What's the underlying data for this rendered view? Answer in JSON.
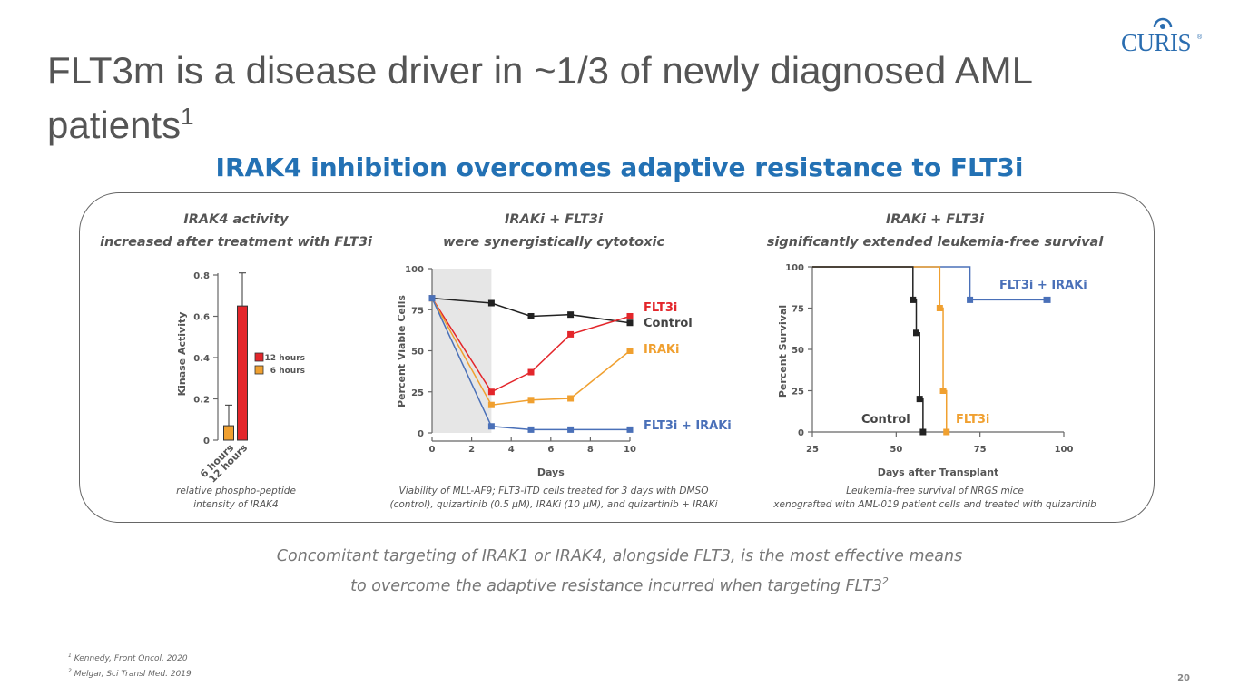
{
  "slide": {
    "title_main": "FLT3m is a disease driver in ~1/3 of newly diagnosed AML patients",
    "title_sup": "1",
    "subtitle": "IRAK4 inhibition overcomes adaptive resistance to FLT3i",
    "logo_text": "CURIS",
    "logo_mark": "®",
    "conclusion_line1": "Concomitant targeting of IRAK1 or IRAK4, alongside FLT3, is the most effective means",
    "conclusion_line2": "to overcome the adaptive resistance incurred when targeting FLT3",
    "conclusion_sup": "2",
    "ref1_num": "1",
    "ref1_text": " Kennedy, Front Oncol. 2020",
    "ref2_num": "2",
    "ref2_text": " Melgar, Sci Transl Med. 2019",
    "page_number": "20"
  },
  "panels": [
    {
      "head1": "IRAK4 activity",
      "head2": "increased after treatment with FLT3i",
      "cap1": "relative phospho-peptide",
      "cap2": "intensity of IRAK4"
    },
    {
      "head1": "IRAKi + FLT3i",
      "head2": "were synergistically cytotoxic",
      "cap1": "Viability of MLL-AF9; FLT3-ITD cells treated for 3 days with DMSO",
      "cap2": "(control), quizartinib (0.5 µM), IRAKi (10 µM), and quizartinib + IRAKi"
    },
    {
      "head1": "IRAKi + FLT3i",
      "head2": "significantly extended leukemia-free survival",
      "cap1": "Leukemia-free survival of NRGS mice",
      "cap2": "xenografted with AML-019 patient cells and treated with quizartinib"
    }
  ],
  "colors": {
    "accent": "#2371b4",
    "red": "#e3262b",
    "orange": "#f0a030",
    "blue": "#4a70b8",
    "black": "#222222"
  },
  "chart_data": [
    {
      "type": "bar",
      "ylabel": "Kinase Activity",
      "ylim": [
        0,
        0.8
      ],
      "yticks": [
        0,
        0.2,
        0.4,
        0.6,
        0.8
      ],
      "ytick_labels": [
        "0",
        "0.2",
        "0.4",
        "0.6",
        "0.8"
      ],
      "categories": [
        "6 hours",
        "12 hours"
      ],
      "values": [
        0.07,
        0.65
      ],
      "error_upper": [
        0.17,
        0.81
      ],
      "legend": [
        "12 hours",
        "6 hours"
      ],
      "legend_position": "right"
    },
    {
      "type": "line",
      "xlabel": "Days",
      "ylabel": "Percent Viable Cells",
      "xlim": [
        0,
        10
      ],
      "ylim": [
        0,
        100
      ],
      "xticks": [
        0,
        2,
        4,
        6,
        8,
        10
      ],
      "xtick_labels": [
        "0",
        "2",
        "4",
        "6",
        "8",
        "10"
      ],
      "yticks": [
        0,
        25,
        50,
        75,
        100
      ],
      "ytick_labels": [
        "0",
        "25",
        "50",
        "75",
        "100"
      ],
      "shaded_region": [
        0,
        3
      ],
      "series": [
        {
          "name": "Control",
          "x": [
            0,
            3,
            5,
            7,
            10
          ],
          "y": [
            82,
            79,
            71,
            72,
            67
          ]
        },
        {
          "name": "FLT3i",
          "x": [
            0,
            3,
            5,
            7,
            10
          ],
          "y": [
            82,
            25,
            37,
            60,
            71
          ]
        },
        {
          "name": "IRAKi",
          "x": [
            0,
            3,
            5,
            7,
            10
          ],
          "y": [
            82,
            17,
            20,
            21,
            50
          ]
        },
        {
          "name": "FLT3i + IRAKi",
          "x": [
            0,
            3,
            5,
            7,
            10
          ],
          "y": [
            82,
            4,
            2,
            2,
            2
          ]
        }
      ]
    },
    {
      "type": "line",
      "xlabel": "Days after Transplant",
      "ylabel": "Percent Survival",
      "xlim": [
        25,
        100
      ],
      "ylim": [
        0,
        100
      ],
      "xticks": [
        25,
        50,
        75,
        100
      ],
      "xtick_labels": [
        "25",
        "50",
        "75",
        "100"
      ],
      "yticks": [
        0,
        25,
        50,
        75,
        100
      ],
      "ytick_labels": [
        "0",
        "25",
        "50",
        "75",
        "100"
      ],
      "series": [
        {
          "name": "Control",
          "x": [
            25,
            55,
            55,
            56,
            56,
            57,
            57,
            58,
            58
          ],
          "y": [
            100,
            100,
            80,
            80,
            60,
            60,
            20,
            20,
            0
          ]
        },
        {
          "name": "FLT3i",
          "x": [
            25,
            63,
            63,
            64,
            64,
            65,
            65
          ],
          "y": [
            100,
            100,
            75,
            75,
            25,
            25,
            0
          ]
        },
        {
          "name": "FLT3i + IRAKi",
          "x": [
            25,
            72,
            72,
            95
          ],
          "y": [
            100,
            100,
            80,
            80
          ]
        }
      ]
    }
  ]
}
